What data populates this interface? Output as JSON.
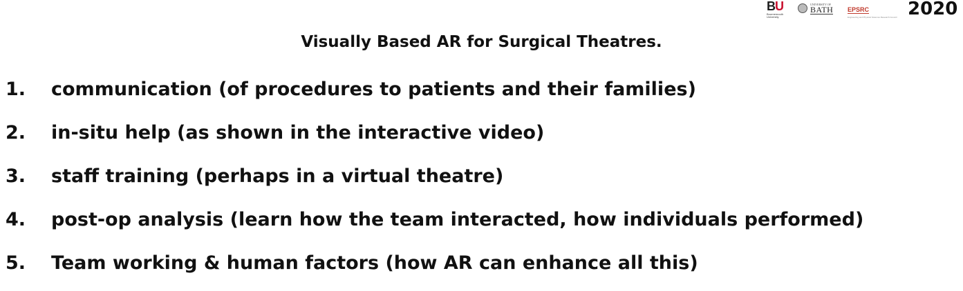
{
  "logos": {
    "bu": {
      "letters": "BU",
      "letter_b": "B",
      "letter_u": "U",
      "caption": "Bournemouth University",
      "accent_color": "#c8102e"
    },
    "bath": {
      "superscript": "UNIVERSITY OF",
      "word": "BATH"
    },
    "epsrc": {
      "word": "EPSRC",
      "caption": "Engineering and Physical Sciences Research Council",
      "color": "#c0392b"
    },
    "year": "2020"
  },
  "slide": {
    "title": "Visually Based AR for Surgical Theatres.",
    "items": [
      {
        "number": "1.",
        "text": "communication (of procedures to patients and their families)"
      },
      {
        "number": "2.",
        "text": "in-situ help (as shown in the interactive video)"
      },
      {
        "number": "3.",
        "text": "staff training (perhaps in a virtual theatre)"
      },
      {
        "number": "4.",
        "text": "post-op analysis (learn how the team interacted, how individuals performed)"
      },
      {
        "number": "5.",
        "text": "Team working & human factors (how AR can enhance all this)"
      }
    ]
  }
}
